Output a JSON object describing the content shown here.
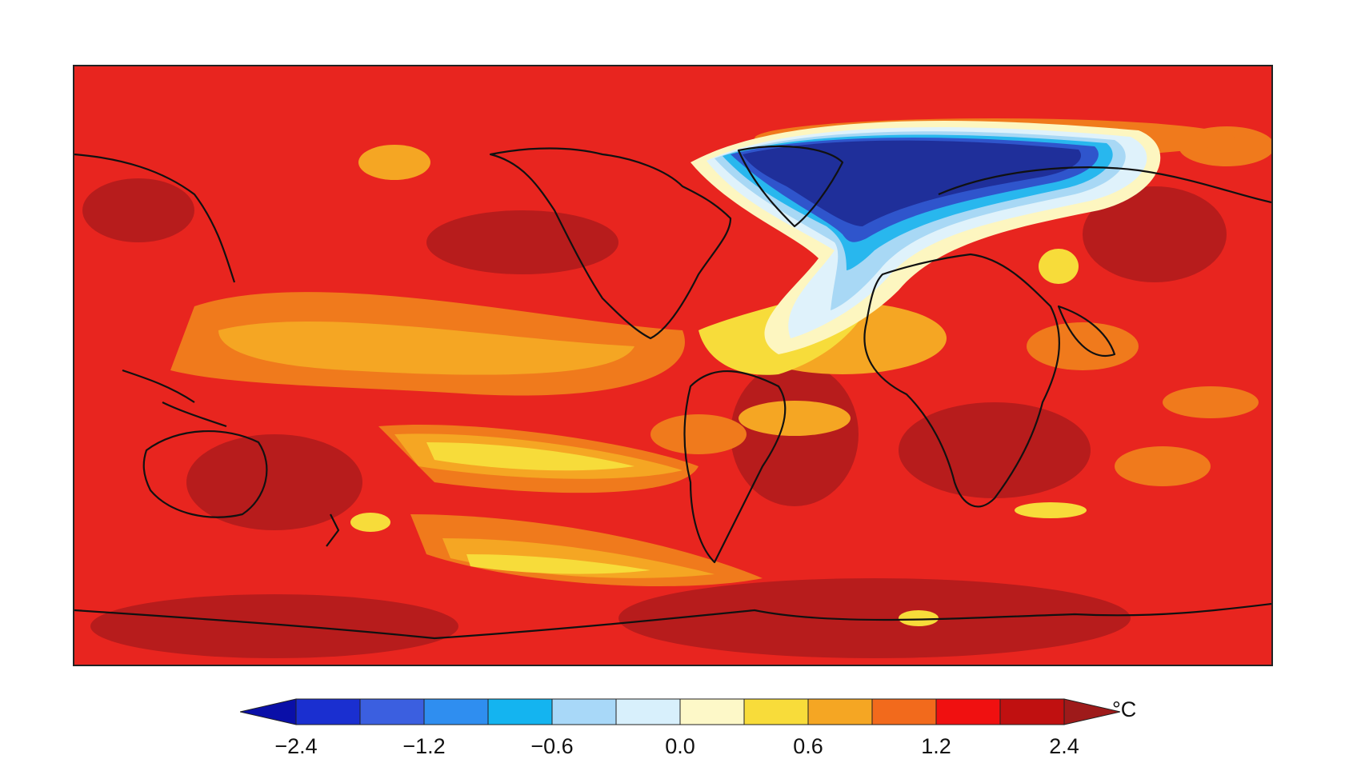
{
  "map": {
    "field": "surface temperature anomaly",
    "projection": "equirectangular, centered on the Americas (~30°W)",
    "colors": {
      "background_warm": "#e8251f",
      "dark_red": "#b71c1c",
      "orange": "#f07a1c",
      "light_orange": "#f5a623",
      "yellow": "#f7dc3a",
      "pale_yellow": "#fdf6c0",
      "white_blue": "#dff2fb",
      "light_blue": "#a8d8f5",
      "sky_blue": "#28b7ee",
      "mid_blue": "#2f7fe0",
      "blue": "#2f55cc",
      "navy": "#1f2f9a",
      "coastline": "#111111"
    }
  },
  "colorbar": {
    "unit": "°C",
    "colors": [
      "#0a0fa8",
      "#1a2fd0",
      "#3b5fe0",
      "#2f8ef0",
      "#14b4f0",
      "#a8d8f8",
      "#d8f0fc",
      "#fdf8c8",
      "#f8dc3a",
      "#f5a623",
      "#f26a1c",
      "#f01010",
      "#c01010",
      "#9e1a1a"
    ],
    "tick_labels": [
      {
        "label": "−2.4",
        "index": 1
      },
      {
        "label": "−1.2",
        "index": 3
      },
      {
        "label": "−0.6",
        "index": 5
      },
      {
        "label": "0.0",
        "index": 7
      },
      {
        "label": "0.6",
        "index": 9
      },
      {
        "label": "1.2",
        "index": 11
      },
      {
        "label": "2.4",
        "index": 13
      }
    ]
  }
}
